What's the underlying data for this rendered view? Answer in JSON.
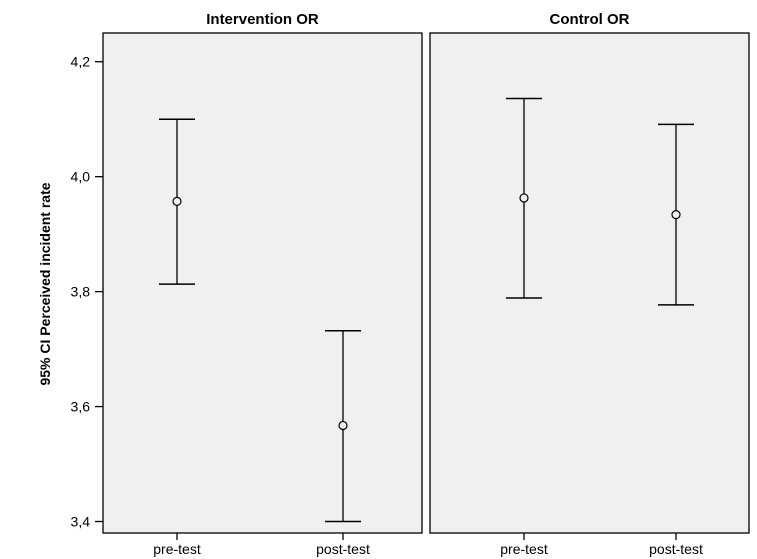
{
  "chart_data": {
    "type": "errorbar",
    "ylabel": "95% CI  Perceived incident rate",
    "ylim": [
      3.38,
      4.25
    ],
    "yticks": [
      3.4,
      3.6,
      3.8,
      4.0,
      4.2
    ],
    "ytick_labels": [
      "3,4",
      "3,6",
      "3,8",
      "4,0",
      "4,2"
    ],
    "grid": false,
    "panels": [
      {
        "title": "Intervention OR",
        "categories": [
          "pre-test",
          "post-test"
        ],
        "points": [
          {
            "category": "pre-test",
            "mean": 3.957,
            "lower": 3.813,
            "upper": 4.1
          },
          {
            "category": "post-test",
            "mean": 3.567,
            "lower": 3.4,
            "upper": 3.732
          }
        ]
      },
      {
        "title": "Control OR",
        "categories": [
          "pre-test",
          "post-test"
        ],
        "points": [
          {
            "category": "pre-test",
            "mean": 3.963,
            "lower": 3.789,
            "upper": 4.136
          },
          {
            "category": "post-test",
            "mean": 3.934,
            "lower": 3.777,
            "upper": 4.091
          }
        ]
      }
    ],
    "colors": {
      "panel_background": "#f0f0f0",
      "frame": "#000000",
      "marks": "#000000"
    }
  }
}
